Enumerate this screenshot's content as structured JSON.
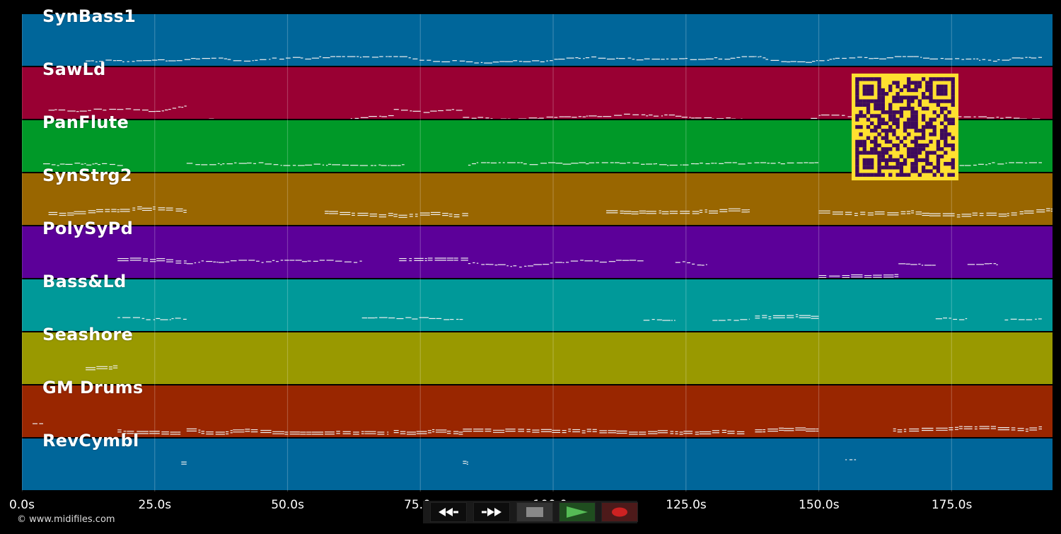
{
  "app": {
    "copyright": "© www.midifiles.com"
  },
  "tracks": [
    {
      "name": "SynBass1",
      "color": "#00669a"
    },
    {
      "name": "SawLd",
      "color": "#990033"
    },
    {
      "name": "PanFlute",
      "color": "#009928"
    },
    {
      "name": "SynStrg2",
      "color": "#996600"
    },
    {
      "name": "PolySyPd",
      "color": "#5c0099"
    },
    {
      "name": "Bass&Ld",
      "color": "#009999"
    },
    {
      "name": "Seashore",
      "color": "#999900"
    },
    {
      "name": "GM Drums",
      "color": "#992600"
    },
    {
      "name": "RevCymbl",
      "color": "#00669a"
    }
  ],
  "time_axis": {
    "ticks": [
      "0.0s",
      "25.0s",
      "50.0s",
      "75.0s",
      "100.0s",
      "125.0s",
      "150.0s",
      "175.0s"
    ],
    "seconds_per_tick": 25,
    "max_seconds": 194
  },
  "transport": {
    "rewind": {
      "icon": "rewind-icon"
    },
    "fast_forward": {
      "icon": "fast-forward-icon"
    },
    "stop": {
      "icon": "stop-icon",
      "color": "#888888"
    },
    "play": {
      "icon": "play-icon",
      "color": "#55bb55"
    },
    "record": {
      "icon": "record-icon",
      "color": "#cc2222"
    }
  },
  "qr_code": {
    "icon": "qr-code-icon",
    "fg": "#3d0a5c",
    "bg": "#ffe030"
  }
}
